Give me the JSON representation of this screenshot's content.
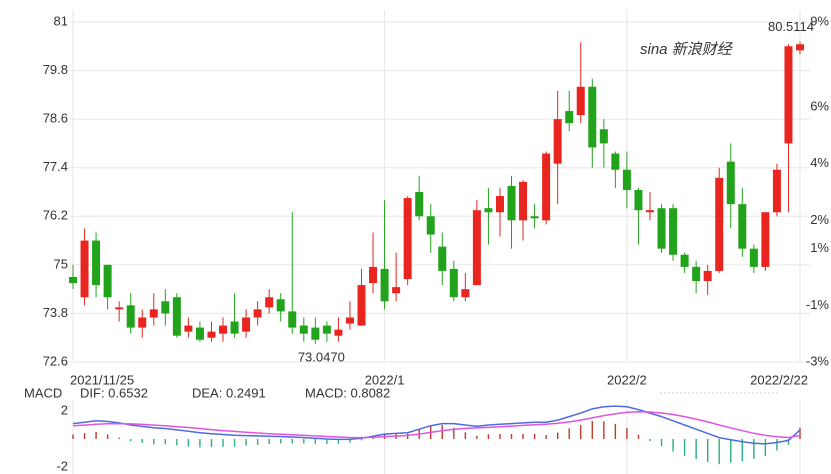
{
  "chart_data": [
    {
      "type": "candlestick",
      "categories": [
        "2021/11/25",
        null,
        null,
        null,
        null,
        null,
        null,
        null,
        null,
        null,
        null,
        null,
        null,
        null,
        null,
        null,
        null,
        null,
        null,
        null,
        null,
        null,
        null,
        null,
        null,
        null,
        null,
        "2022/1",
        null,
        null,
        null,
        null,
        null,
        null,
        null,
        null,
        null,
        null,
        null,
        null,
        null,
        null,
        null,
        null,
        null,
        null,
        null,
        null,
        "2022/2",
        null,
        null,
        null,
        null,
        null,
        null,
        null,
        null,
        null,
        null,
        null,
        null,
        null,
        null,
        "2022/2/22"
      ],
      "open": [
        74.7,
        74.2,
        75.6,
        75.0,
        73.9,
        74.0,
        73.45,
        73.7,
        74.1,
        74.2,
        73.35,
        73.45,
        73.2,
        73.3,
        73.6,
        73.35,
        73.7,
        73.95,
        74.15,
        73.85,
        73.5,
        73.45,
        73.5,
        73.25,
        73.55,
        73.5,
        74.55,
        74.9,
        74.3,
        74.65,
        76.8,
        76.2,
        75.45,
        74.9,
        74.2,
        74.5,
        76.4,
        76.3,
        76.95,
        76.1,
        76.2,
        76.1,
        77.5,
        78.8,
        78.7,
        79.4,
        78.35,
        77.75,
        77.35,
        76.85,
        76.3,
        76.4,
        76.4,
        75.25,
        74.95,
        74.6,
        74.85,
        77.55,
        76.5,
        75.4,
        74.95,
        76.3,
        78.0,
        80.3
      ],
      "high": [
        75.0,
        75.9,
        75.8,
        75.0,
        74.1,
        74.3,
        73.9,
        74.3,
        74.4,
        74.3,
        73.7,
        73.6,
        73.6,
        73.7,
        74.3,
        73.9,
        74.1,
        74.4,
        74.3,
        76.3,
        73.7,
        73.7,
        73.6,
        73.7,
        74.1,
        74.9,
        75.8,
        76.6,
        75.3,
        76.7,
        77.2,
        76.5,
        75.8,
        75.1,
        74.8,
        76.6,
        76.9,
        76.9,
        77.2,
        77.1,
        76.5,
        77.8,
        79.3,
        79.3,
        80.5,
        79.6,
        78.6,
        77.8,
        77.8,
        76.9,
        76.8,
        76.5,
        76.5,
        75.3,
        75.1,
        75.0,
        77.4,
        78.0,
        76.9,
        75.5,
        76.3,
        77.5,
        80.45,
        80.5114
      ],
      "low": [
        74.4,
        74.0,
        74.2,
        73.9,
        73.6,
        73.3,
        73.2,
        73.5,
        73.5,
        73.2,
        73.2,
        73.1,
        73.1,
        73.1,
        73.2,
        73.2,
        73.5,
        73.8,
        73.6,
        73.3,
        73.1,
        73.047,
        73.1,
        73.1,
        73.4,
        73.5,
        74.3,
        73.9,
        74.1,
        74.5,
        76.1,
        75.3,
        74.5,
        74.1,
        74.1,
        74.5,
        75.5,
        75.7,
        75.4,
        75.6,
        75.9,
        76.0,
        76.5,
        78.3,
        78.5,
        77.4,
        77.4,
        76.9,
        76.4,
        75.5,
        76.1,
        75.3,
        75.1,
        74.8,
        74.3,
        74.25,
        74.8,
        75.9,
        75.2,
        74.8,
        74.85,
        76.2,
        76.3,
        80.2
      ],
      "close": [
        74.55,
        75.6,
        74.5,
        74.2,
        73.95,
        73.45,
        73.7,
        73.9,
        73.8,
        73.25,
        73.5,
        73.15,
        73.35,
        73.5,
        73.3,
        73.7,
        73.9,
        74.2,
        73.85,
        73.45,
        73.3,
        73.15,
        73.3,
        73.4,
        73.7,
        74.5,
        74.95,
        74.1,
        74.45,
        76.65,
        76.2,
        75.75,
        74.85,
        74.2,
        74.4,
        76.35,
        76.3,
        76.7,
        76.1,
        77.05,
        76.15,
        77.75,
        78.6,
        78.5,
        79.4,
        77.9,
        78.0,
        77.35,
        76.85,
        76.35,
        76.35,
        75.4,
        75.25,
        74.95,
        74.6,
        74.85,
        77.15,
        76.5,
        75.4,
        74.95,
        76.3,
        77.35,
        80.4,
        80.45
      ],
      "up_color": "#e8251f",
      "down_color": "#22a31c",
      "ylim": [
        72.6,
        81
      ],
      "yticks": [
        72.6,
        73.8,
        75,
        76.2,
        77.4,
        78.6,
        79.8,
        81
      ],
      "y2lim": [
        -3,
        9
      ],
      "y2ticks": [
        {
          "value": -3,
          "label": "-3%"
        },
        {
          "value": -1,
          "label": "-1%"
        },
        {
          "value": 1,
          "label": "1%"
        },
        {
          "value": 2,
          "label": "2%"
        },
        {
          "value": 4,
          "label": "4%"
        },
        {
          "value": 6,
          "label": "6%"
        },
        {
          "value": 9,
          "label": "9%"
        }
      ],
      "annotations": [
        {
          "value": 80.5114,
          "label": "80.5114"
        },
        {
          "value": 73.047,
          "label": "73.0470"
        }
      ],
      "watermark": "sina 新浪财经",
      "grid": true
    },
    {
      "type": "macd",
      "title": "MACD",
      "ylim": [
        -2.5,
        3.5
      ],
      "yticks": [
        -2,
        2
      ],
      "series": [
        {
          "name": "DIF: 0.6532",
          "color": "#4f6be0",
          "kind": "line",
          "values": [
            1.1,
            1.2,
            1.3,
            1.25,
            1.15,
            1.0,
            0.9,
            0.8,
            0.75,
            0.65,
            0.55,
            0.45,
            0.38,
            0.32,
            0.27,
            0.24,
            0.22,
            0.2,
            0.18,
            0.14,
            0.1,
            0.05,
            0.0,
            -0.03,
            -0.02,
            0.05,
            0.2,
            0.35,
            0.4,
            0.45,
            0.7,
            0.95,
            1.1,
            1.1,
            1.0,
            0.9,
            1.0,
            1.05,
            1.1,
            1.15,
            1.2,
            1.2,
            1.35,
            1.6,
            1.85,
            2.15,
            2.3,
            2.35,
            2.3,
            2.1,
            1.85,
            1.6,
            1.3,
            1.0,
            0.7,
            0.4,
            0.1,
            -0.05,
            -0.2,
            -0.3,
            -0.35,
            -0.25,
            -0.1,
            0.6532
          ]
        },
        {
          "name": "DEA: 0.2491",
          "color": "#e055e0",
          "kind": "line",
          "values": [
            0.94,
            0.99,
            1.05,
            1.09,
            1.1,
            1.08,
            1.04,
            0.99,
            0.94,
            0.88,
            0.82,
            0.75,
            0.67,
            0.6,
            0.54,
            0.48,
            0.43,
            0.38,
            0.34,
            0.3,
            0.26,
            0.22,
            0.18,
            0.14,
            0.11,
            0.1,
            0.12,
            0.17,
            0.21,
            0.26,
            0.35,
            0.47,
            0.6,
            0.7,
            0.76,
            0.79,
            0.83,
            0.87,
            0.92,
            0.97,
            1.02,
            1.06,
            1.12,
            1.22,
            1.35,
            1.51,
            1.67,
            1.81,
            1.91,
            1.95,
            1.93,
            1.86,
            1.75,
            1.6,
            1.42,
            1.22,
            1.0,
            0.79,
            0.59,
            0.41,
            0.26,
            0.16,
            0.11,
            0.2491
          ]
        },
        {
          "name": "MACD: 0.8082",
          "color": "#a52a2a",
          "kind": "bar",
          "up_color": "#c0392b",
          "down_color": "#2ab07f",
          "values": [
            0.32,
            0.42,
            0.5,
            0.32,
            0.1,
            -0.16,
            -0.28,
            -0.38,
            -0.38,
            -0.46,
            -0.54,
            -0.6,
            -0.58,
            -0.56,
            -0.54,
            -0.48,
            -0.42,
            -0.36,
            -0.32,
            -0.32,
            -0.32,
            -0.34,
            -0.36,
            -0.34,
            -0.26,
            -0.1,
            0.16,
            0.36,
            0.38,
            0.38,
            0.7,
            0.96,
            1.0,
            0.8,
            0.48,
            0.22,
            0.34,
            0.36,
            0.36,
            0.36,
            0.36,
            0.28,
            0.46,
            0.76,
            1.0,
            1.28,
            1.26,
            1.08,
            0.78,
            0.3,
            -0.16,
            -0.52,
            -0.9,
            -1.2,
            -1.44,
            -1.64,
            -1.8,
            -1.68,
            -1.58,
            -1.42,
            -1.22,
            -0.82,
            -0.42,
            0.8082
          ]
        }
      ]
    }
  ]
}
